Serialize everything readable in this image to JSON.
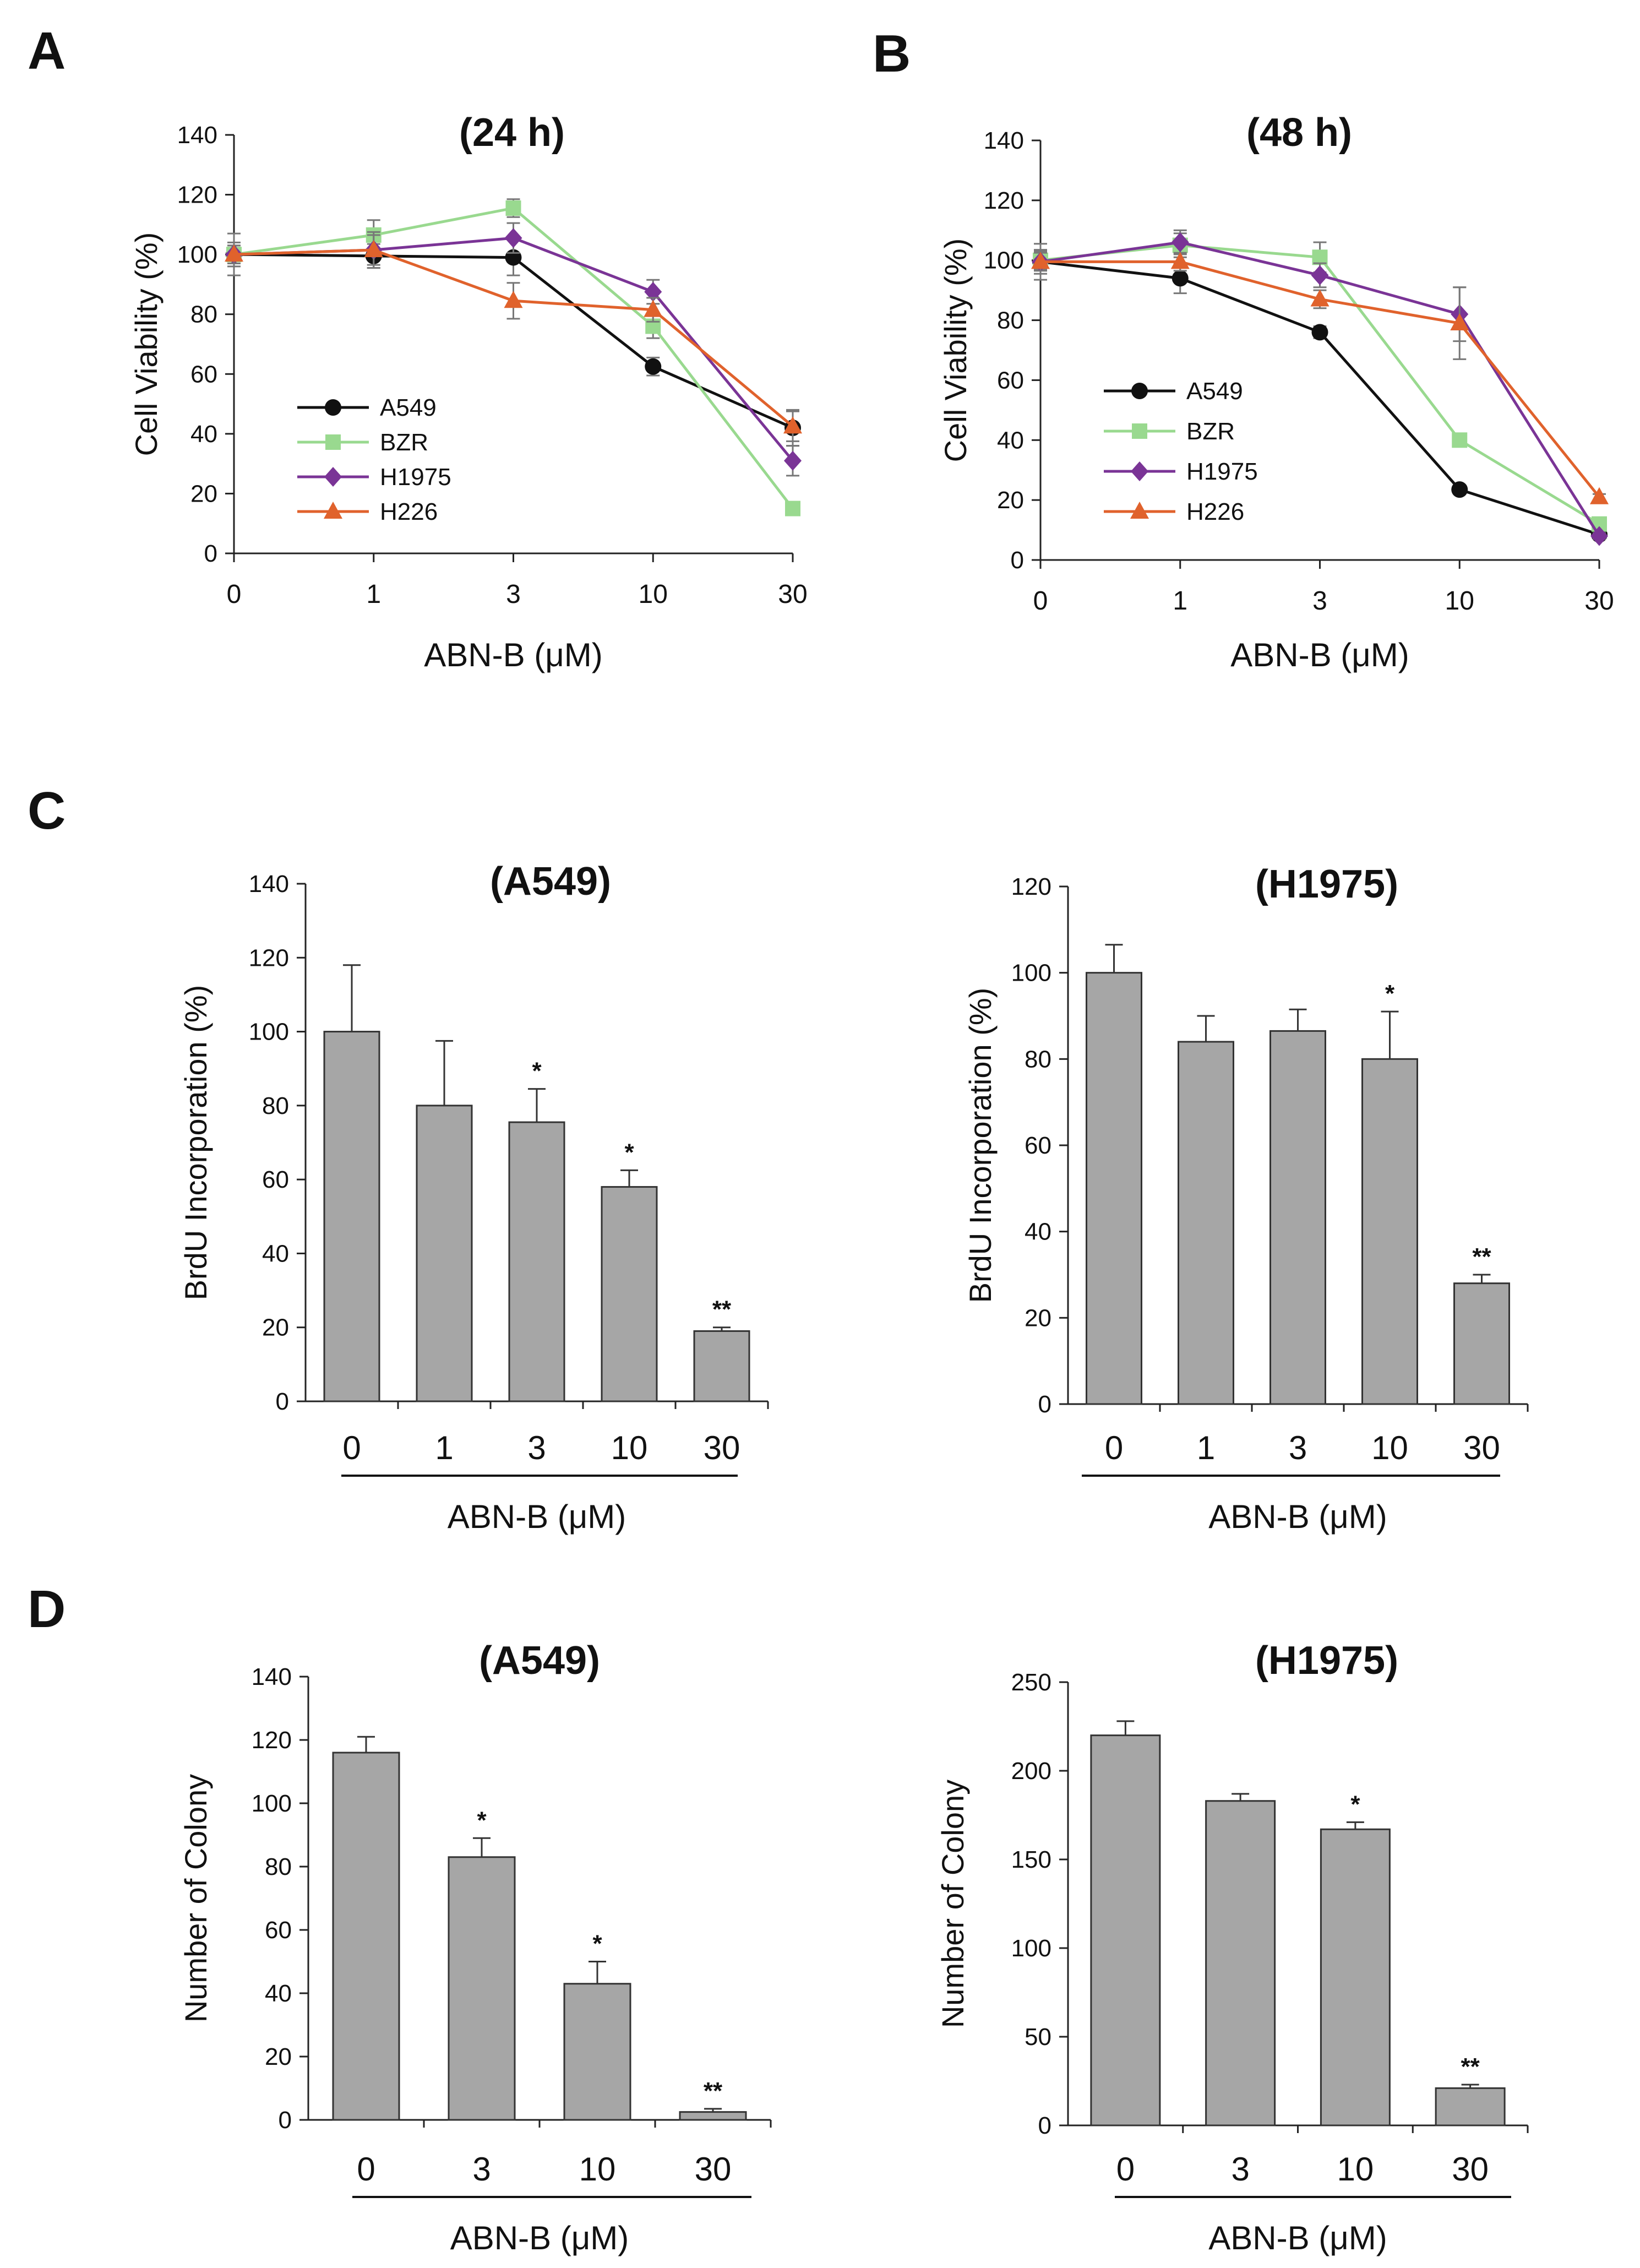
{
  "panel_labels": [
    "A",
    "B",
    "C",
    "D"
  ],
  "chart_data": [
    {
      "id": "A",
      "type": "line",
      "title": "(24 h)",
      "xlabel": "ABN-B (μM)",
      "ylabel": "Cell Viability (%)",
      "categories": [
        "0",
        "1",
        "3",
        "10",
        "30"
      ],
      "ylim": [
        0,
        140
      ],
      "yticks": [
        0,
        20,
        40,
        60,
        80,
        100,
        120,
        140
      ],
      "legend_position": "center-left",
      "series": [
        {
          "name": "A549",
          "color": "#111111",
          "marker": "circle",
          "values": [
            100,
            99.5,
            99,
            62.5,
            42
          ],
          "errors": [
            4,
            4,
            6,
            3,
            6
          ]
        },
        {
          "name": "BZR",
          "color": "#99d98f",
          "marker": "square",
          "values": [
            100,
            106.5,
            115.5,
            76,
            15
          ],
          "errors": [
            3,
            5,
            3,
            4,
            2
          ]
        },
        {
          "name": "H1975",
          "color": "#7a3496",
          "marker": "diamond",
          "values": [
            100,
            101.5,
            105.5,
            87.5,
            31
          ],
          "errors": [
            3,
            6,
            5,
            4,
            5
          ]
        },
        {
          "name": "H226",
          "color": "#e0622c",
          "marker": "triangle",
          "values": [
            100,
            101.5,
            84.5,
            81.5,
            42.5
          ],
          "errors": [
            7,
            5,
            6,
            4,
            5
          ]
        }
      ]
    },
    {
      "id": "B",
      "type": "line",
      "title": "(48 h)",
      "xlabel": "ABN-B (μM)",
      "ylabel": "Cell Viability (%)",
      "categories": [
        "0",
        "1",
        "3",
        "10",
        "30"
      ],
      "ylim": [
        0,
        140
      ],
      "yticks": [
        0,
        20,
        40,
        60,
        80,
        100,
        120,
        140
      ],
      "legend_position": "center-left",
      "series": [
        {
          "name": "A549",
          "color": "#111111",
          "marker": "circle",
          "values": [
            99.5,
            94,
            76,
            23.5,
            8.5
          ],
          "errors": [
            6,
            5,
            2,
            1,
            1
          ]
        },
        {
          "name": "BZR",
          "color": "#99d98f",
          "marker": "square",
          "values": [
            100,
            105,
            101,
            40,
            12
          ],
          "errors": [
            3,
            4,
            5,
            2,
            1
          ]
        },
        {
          "name": "H1975",
          "color": "#7a3496",
          "marker": "diamond",
          "values": [
            99.5,
            106,
            95,
            82,
            8
          ],
          "errors": [
            3,
            4,
            4,
            9,
            1
          ]
        },
        {
          "name": "H226",
          "color": "#e0622c",
          "marker": "triangle",
          "values": [
            99.5,
            99.5,
            87,
            79,
            21
          ],
          "errors": [
            4,
            3,
            3,
            12,
            1
          ]
        }
      ]
    },
    {
      "id": "C-A549",
      "type": "bar",
      "title": "(A549)",
      "xlabel": "ABN-B (μM)",
      "ylabel": "BrdU Incorporation (%)",
      "categories": [
        "0",
        "1",
        "3",
        "10",
        "30"
      ],
      "values": [
        100,
        80,
        75.5,
        58,
        19
      ],
      "errors": [
        18,
        17.5,
        9,
        4.5,
        1
      ],
      "significance": [
        "",
        "",
        "*",
        "*",
        "**"
      ],
      "ylim": [
        0,
        140
      ],
      "yticks": [
        0,
        20,
        40,
        60,
        80,
        100,
        120,
        140
      ],
      "bar_color": "#a6a6a6"
    },
    {
      "id": "C-H1975",
      "type": "bar",
      "title": "(H1975)",
      "xlabel": "ABN-B (μM)",
      "ylabel": "BrdU Incorporation (%)",
      "categories": [
        "0",
        "1",
        "3",
        "10",
        "30"
      ],
      "values": [
        100,
        84,
        86.5,
        80,
        28
      ],
      "errors": [
        6.5,
        6,
        5,
        11,
        2
      ],
      "significance": [
        "",
        "",
        "",
        "*",
        "**"
      ],
      "ylim": [
        0,
        120
      ],
      "yticks": [
        0,
        20,
        40,
        60,
        80,
        100,
        120
      ],
      "bar_color": "#a6a6a6"
    },
    {
      "id": "D-A549",
      "type": "bar",
      "title": "(A549)",
      "xlabel": "ABN-B (μM)",
      "ylabel": "Number of Colony",
      "categories": [
        "0",
        "3",
        "10",
        "30"
      ],
      "values": [
        116,
        83,
        43,
        2.5
      ],
      "errors": [
        5,
        6,
        7,
        1
      ],
      "significance": [
        "",
        "*",
        "*",
        "**"
      ],
      "ylim": [
        0,
        140
      ],
      "yticks": [
        0,
        20,
        40,
        60,
        80,
        100,
        120,
        140
      ],
      "bar_color": "#a6a6a6"
    },
    {
      "id": "D-H1975",
      "type": "bar",
      "title": "(H1975)",
      "xlabel": "ABN-B (μM)",
      "ylabel": "Number of Colony",
      "categories": [
        "0",
        "3",
        "10",
        "30"
      ],
      "values": [
        220,
        183,
        167,
        21
      ],
      "errors": [
        8,
        4,
        4,
        2
      ],
      "significance": [
        "",
        "",
        "*",
        "**"
      ],
      "ylim": [
        0,
        250
      ],
      "yticks": [
        0,
        50,
        100,
        150,
        200,
        250
      ],
      "bar_color": "#a6a6a6"
    }
  ]
}
